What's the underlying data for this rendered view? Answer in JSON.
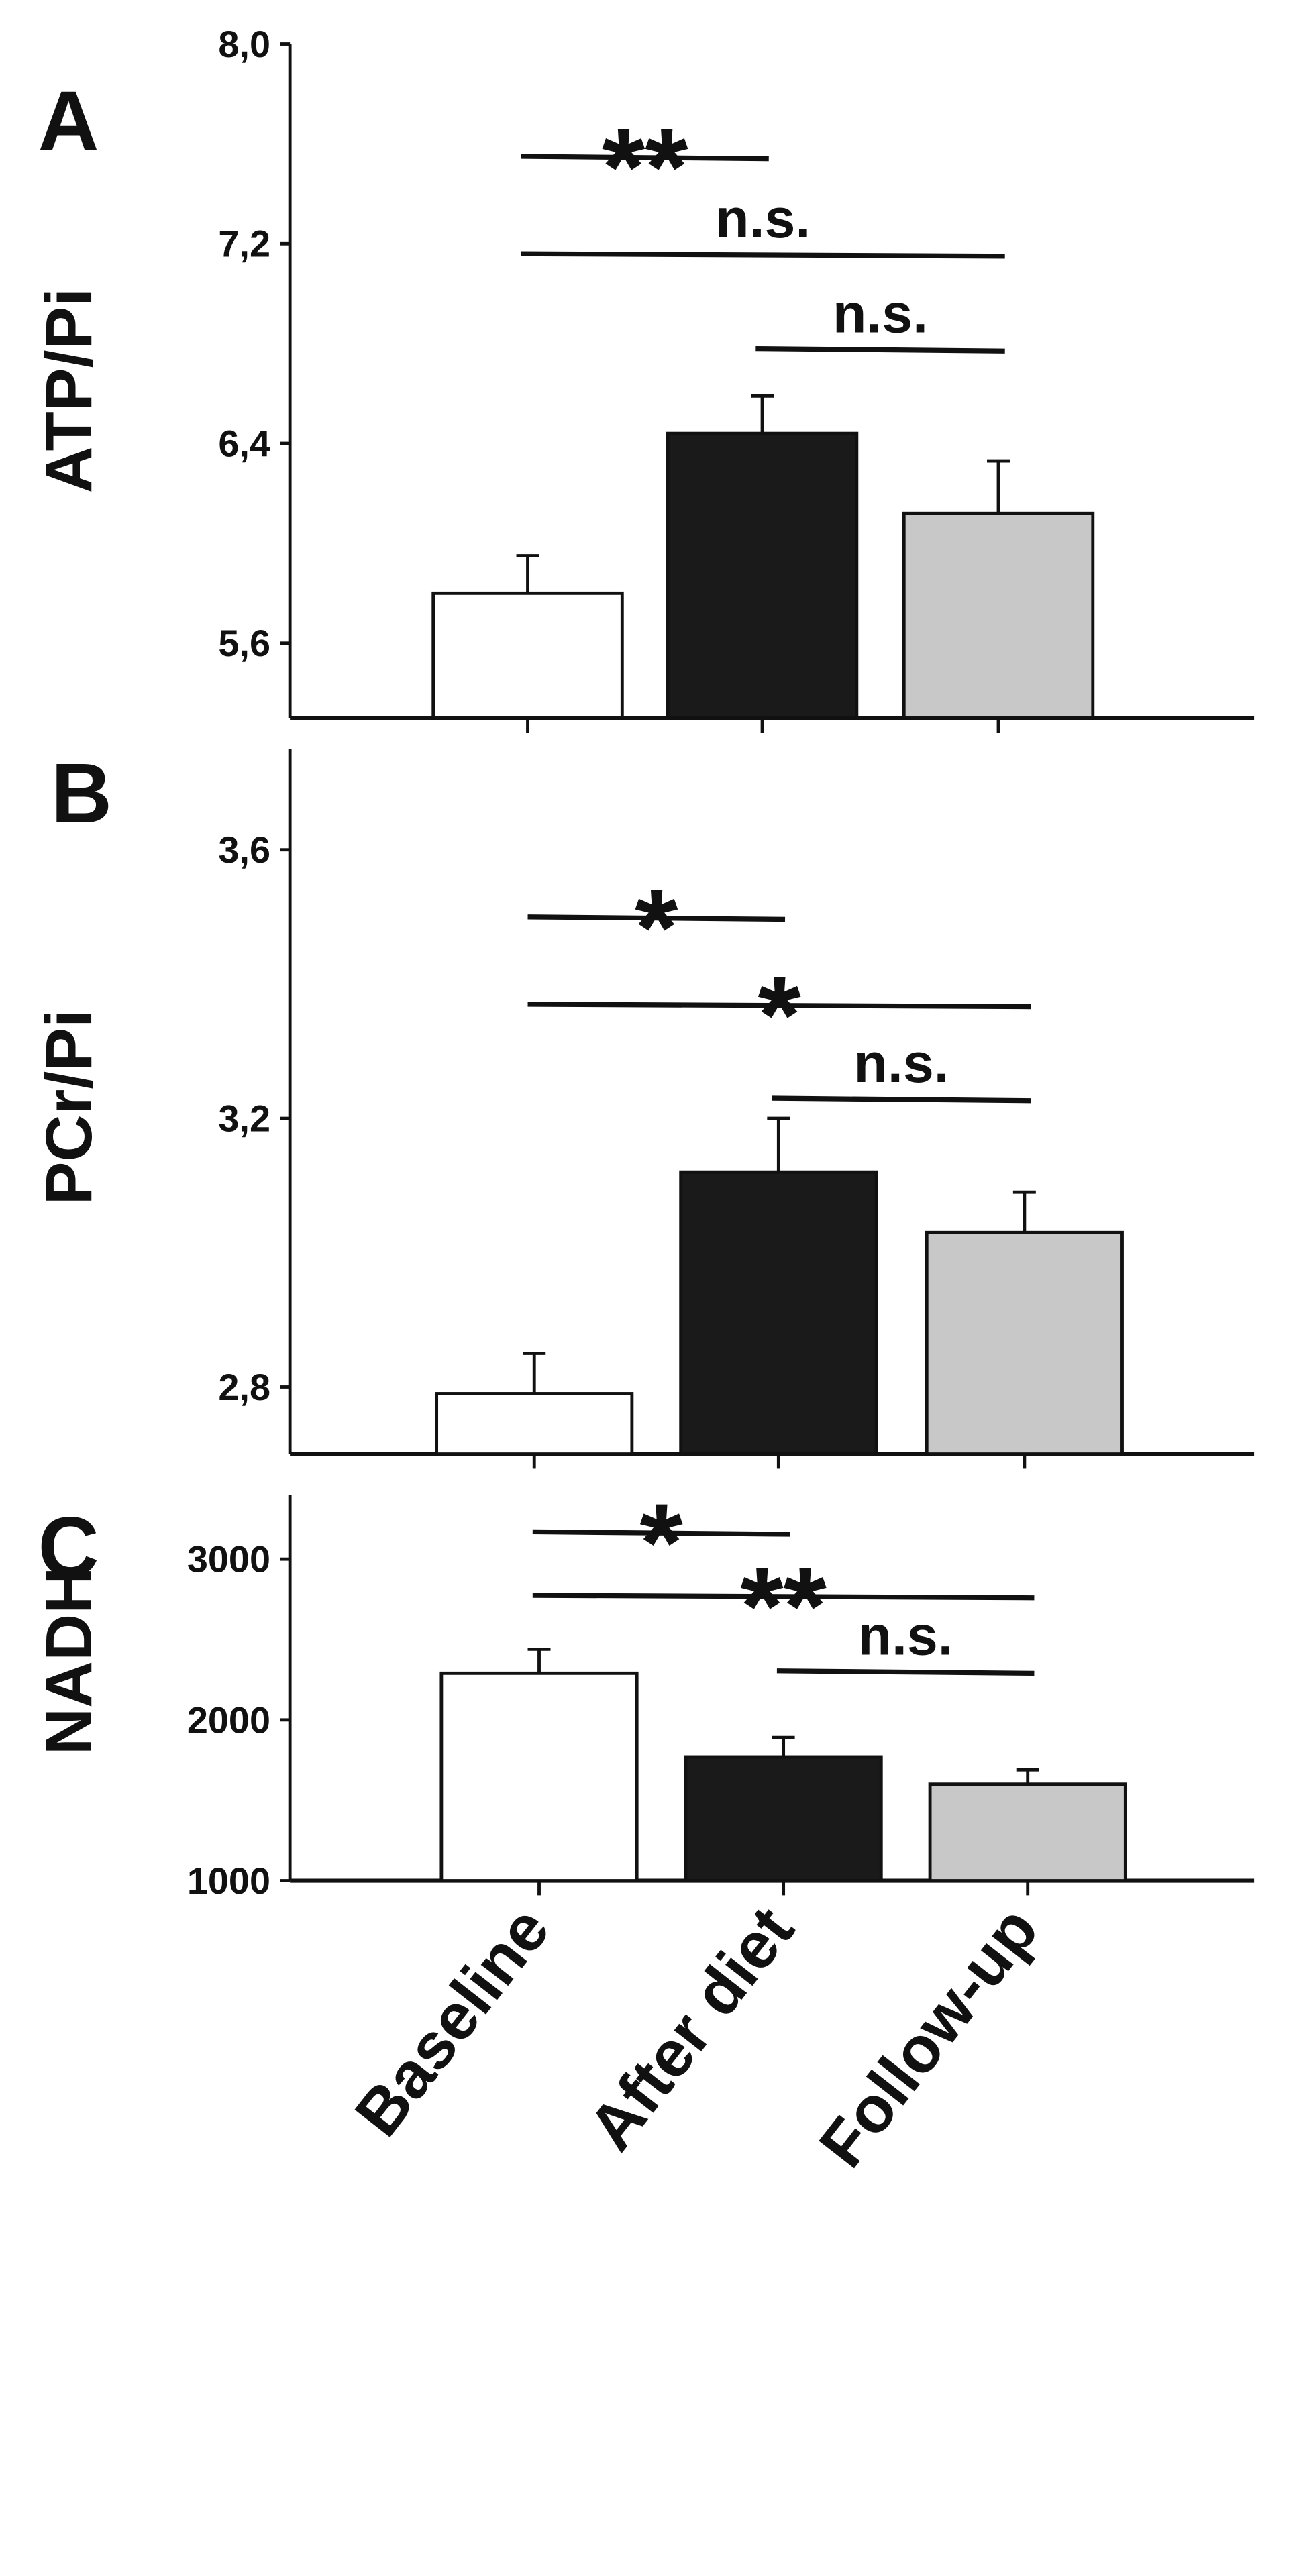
{
  "chart_data": [
    {
      "type": "bar",
      "panel_label": "A",
      "ylabel": "ATP/Pi",
      "categories": [
        "Baseline",
        "After diet",
        "Follow-up"
      ],
      "values": [
        5.8,
        6.44,
        6.12
      ],
      "errors": [
        0.15,
        0.15,
        0.21
      ],
      "colors": [
        "#ffffff",
        "#1a1a1a",
        "#c8c8c8"
      ],
      "ylim": [
        5.3,
        8.0
      ],
      "yticks": [
        5.6,
        6.4,
        7.2,
        8.0
      ],
      "ytick_labels": [
        "5,6",
        "6,4",
        "7,2",
        "8,0"
      ],
      "annotations": [
        {
          "from": 0,
          "to": 1,
          "y": 7.55,
          "label": "**"
        },
        {
          "from": 0,
          "to": 2,
          "y": 7.16,
          "label": "n.s."
        },
        {
          "from": 1,
          "to": 2,
          "y": 6.78,
          "label": "n.s."
        }
      ]
    },
    {
      "type": "bar",
      "panel_label": "B",
      "ylabel": "PCr/Pi",
      "categories": [
        "Baseline",
        "After diet",
        "Follow-up"
      ],
      "values": [
        2.79,
        3.12,
        3.03
      ],
      "errors": [
        0.06,
        0.08,
        0.06
      ],
      "colors": [
        "#ffffff",
        "#1a1a1a",
        "#c8c8c8"
      ],
      "ylim": [
        2.7,
        3.75
      ],
      "yticks": [
        2.8,
        3.2,
        3.6
      ],
      "ytick_labels": [
        "2,8",
        "3,2",
        "3,6"
      ],
      "annotations": [
        {
          "from": 0,
          "to": 1,
          "y": 3.5,
          "label": "*"
        },
        {
          "from": 0,
          "to": 2,
          "y": 3.37,
          "label": "*"
        },
        {
          "from": 1,
          "to": 2,
          "y": 3.23,
          "label": "n.s."
        }
      ]
    },
    {
      "type": "bar",
      "panel_label": "C",
      "ylabel": "NADH",
      "categories": [
        "Baseline",
        "After diet",
        "Follow-up"
      ],
      "values": [
        2290,
        1770,
        1600
      ],
      "errors": [
        150,
        120,
        90
      ],
      "colors": [
        "#ffffff",
        "#1a1a1a",
        "#c8c8c8"
      ],
      "ylim": [
        1000,
        3400
      ],
      "yticks": [
        1000,
        2000,
        3000
      ],
      "ytick_labels": [
        "1000",
        "2000",
        "3000"
      ],
      "annotations": [
        {
          "from": 0,
          "to": 1,
          "y": 3170,
          "label": "*"
        },
        {
          "from": 0,
          "to": 2,
          "y": 2775,
          "label": "**"
        },
        {
          "from": 1,
          "to": 2,
          "y": 2305,
          "label": "n.s."
        }
      ]
    }
  ]
}
